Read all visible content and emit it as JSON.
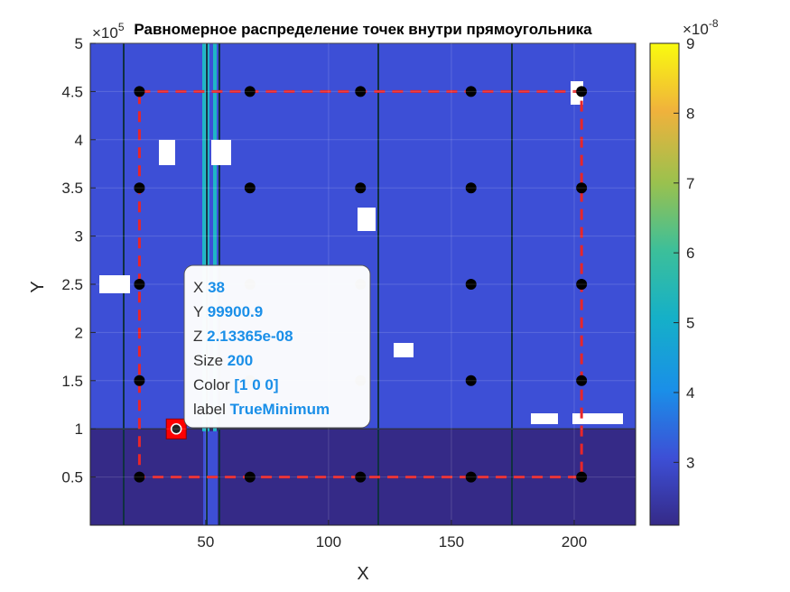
{
  "chart_data": {
    "type": "heatmap",
    "title": "Равномерное распределение точек внутри прямоугольника",
    "xlabel": "X",
    "ylabel": "Y",
    "xlim": [
      3,
      225
    ],
    "ylim": [
      0,
      500000
    ],
    "x_ticks": [
      {
        "value": 50,
        "label": "50"
      },
      {
        "value": 100,
        "label": "100"
      },
      {
        "value": 150,
        "label": "150"
      },
      {
        "value": 200,
        "label": "200"
      }
    ],
    "y_ticks": [
      {
        "value": 50000,
        "label": "0.5"
      },
      {
        "value": 100000,
        "label": "1"
      },
      {
        "value": 150000,
        "label": "1.5"
      },
      {
        "value": 200000,
        "label": "2"
      },
      {
        "value": 250000,
        "label": "2.5"
      },
      {
        "value": 300000,
        "label": "3"
      },
      {
        "value": 350000,
        "label": "3.5"
      },
      {
        "value": 400000,
        "label": "4"
      },
      {
        "value": 450000,
        "label": "4.5"
      },
      {
        "value": 500000,
        "label": "5"
      }
    ],
    "y_exponent": {
      "base": "×10",
      "power": "5"
    },
    "colorbar": {
      "range": [
        2.1e-08,
        9e-08
      ],
      "ticks": [
        {
          "value": 3e-08,
          "label": "3"
        },
        {
          "value": 4e-08,
          "label": "4"
        },
        {
          "value": 5e-08,
          "label": "5"
        },
        {
          "value": 6e-08,
          "label": "6"
        },
        {
          "value": 7e-08,
          "label": "7"
        },
        {
          "value": 8e-08,
          "label": "8"
        },
        {
          "value": 9e-08,
          "label": "9"
        }
      ],
      "exponent": {
        "base": "×10",
        "power": "-8"
      }
    },
    "regions": [
      {
        "x0": 3,
        "x1": 225,
        "y0": 0,
        "y1": 100000,
        "value": 2.2e-08
      },
      {
        "x0": 3,
        "x1": 225,
        "y0": 100000,
        "y1": 500000,
        "value": 4e-08
      }
    ],
    "grid_points": {
      "x": [
        23,
        68,
        113,
        158,
        203
      ],
      "y": [
        50000,
        150000,
        250000,
        350000,
        450000
      ],
      "color": "#000000"
    },
    "rectangle": {
      "x0": 23,
      "x1": 203,
      "y0": 50000,
      "y1": 450000,
      "color": "#e8262a",
      "style": "dashed"
    },
    "true_minimum": {
      "x": 38,
      "y": 99900.9,
      "size": 200,
      "color": [
        1,
        0,
        0
      ],
      "label": "TrueMinimum"
    },
    "datatip": {
      "rows": [
        {
          "key": "X",
          "value": "38"
        },
        {
          "key": "Y",
          "value": "99900.9"
        },
        {
          "key": "Z",
          "value": "2.13365e-08"
        },
        {
          "key": "Size",
          "value": "200"
        },
        {
          "key": "Color",
          "value": "[1 0 0]"
        },
        {
          "key": "label",
          "value": "TrueMinimum"
        }
      ]
    }
  }
}
